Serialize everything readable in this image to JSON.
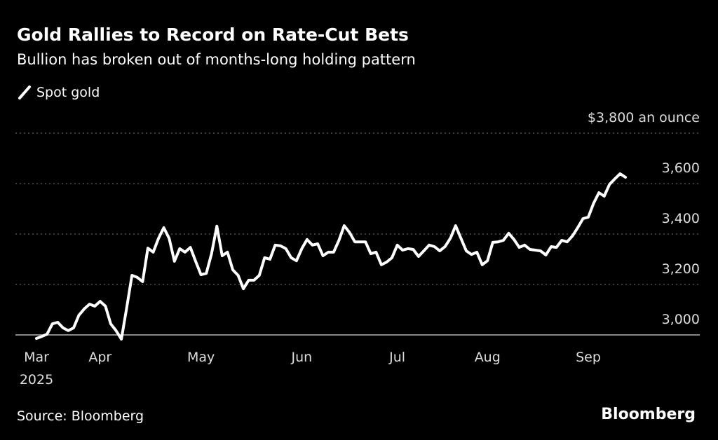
{
  "chart_data": {
    "type": "line",
    "title": "Gold Rallies to Record on Rate-Cut Bets",
    "subtitle": "Bullion has broken out of months-long holding pattern",
    "source": "Source: Bloomberg",
    "brand": "Bloomberg",
    "x_year": "2025",
    "categories": [
      "Mar",
      null,
      null,
      null,
      null,
      null,
      null,
      null,
      null,
      null,
      null,
      null,
      "Apr",
      null,
      null,
      null,
      null,
      null,
      null,
      null,
      null,
      null,
      null,
      null,
      null,
      null,
      null,
      null,
      null,
      null,
      null,
      "May",
      null,
      null,
      null,
      null,
      null,
      null,
      null,
      null,
      null,
      null,
      null,
      null,
      null,
      null,
      null,
      null,
      null,
      null,
      "Jun",
      null,
      null,
      null,
      null,
      null,
      null,
      null,
      null,
      null,
      null,
      null,
      null,
      null,
      null,
      null,
      null,
      null,
      "Jul",
      null,
      null,
      null,
      null,
      null,
      null,
      null,
      null,
      null,
      null,
      null,
      null,
      null,
      null,
      null,
      null,
      "Aug",
      null,
      null,
      null,
      null,
      null,
      null,
      null,
      null,
      null,
      null,
      null,
      null,
      null,
      null,
      null,
      null,
      null,
      null,
      "Sep",
      null,
      null,
      null,
      null,
      null,
      null,
      null
    ],
    "series": [
      {
        "name": "Spot gold",
        "color": "#ffffff",
        "values": [
          2986,
          2994,
          3003,
          3044,
          3050,
          3028,
          3017,
          3028,
          3078,
          3103,
          3122,
          3114,
          3133,
          3114,
          3044,
          3017,
          2983,
          3106,
          3236,
          3228,
          3211,
          3344,
          3328,
          3383,
          3425,
          3383,
          3292,
          3342,
          3328,
          3347,
          3292,
          3239,
          3244,
          3322,
          3431,
          3314,
          3328,
          3258,
          3236,
          3183,
          3217,
          3217,
          3236,
          3306,
          3300,
          3356,
          3353,
          3342,
          3306,
          3294,
          3342,
          3378,
          3356,
          3361,
          3314,
          3328,
          3328,
          3375,
          3433,
          3406,
          3369,
          3369,
          3369,
          3322,
          3328,
          3278,
          3289,
          3306,
          3356,
          3336,
          3342,
          3339,
          3311,
          3333,
          3356,
          3350,
          3333,
          3350,
          3383,
          3433,
          3383,
          3333,
          3319,
          3328,
          3278,
          3294,
          3367,
          3369,
          3375,
          3403,
          3378,
          3347,
          3356,
          3339,
          3336,
          3333,
          3317,
          3350,
          3347,
          3375,
          3369,
          3392,
          3425,
          3461,
          3467,
          3522,
          3564,
          3550,
          3597,
          3619,
          3639,
          3625
        ]
      }
    ],
    "ylim": [
      3000,
      3800
    ],
    "yticks": [
      {
        "value": 3000,
        "label": "3,000"
      },
      {
        "value": 3200,
        "label": "3,200"
      },
      {
        "value": 3400,
        "label": "3,400"
      },
      {
        "value": 3600,
        "label": "3,600"
      },
      {
        "value": 3800,
        "label": "$3,800 an ounce"
      }
    ],
    "grid": true
  }
}
